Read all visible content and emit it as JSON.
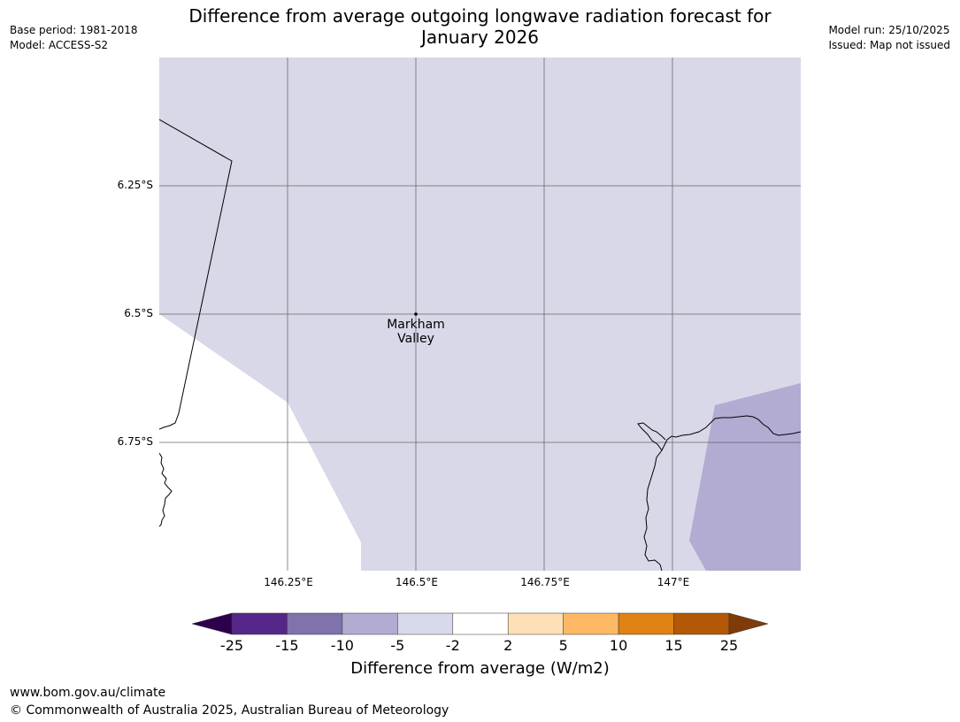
{
  "header": {
    "base_period": "Base period: 1981-2018",
    "model": "Model: ACCESS-S2",
    "model_run": "Model run: 25/10/2025",
    "issued": "Issued: Map not issued"
  },
  "title_line1": "Difference from average outgoing longwave radiation forecast for",
  "title_line2": "January 2026",
  "map": {
    "lat_labels": [
      "6.25°S",
      "6.5°S",
      "6.75°S"
    ],
    "lon_labels": [
      "146.25°E",
      "146.5°E",
      "146.75°E",
      "147°E"
    ],
    "places": [
      {
        "name_line1": "Markham",
        "name_line2": "Valley"
      }
    ],
    "colors": {
      "class_-5_-2": "#d8d8e8",
      "class_-10_-5": "#b2abd2",
      "gridline": "#555555",
      "coast": "#000000"
    }
  },
  "colorbar": {
    "ticks": [
      "-25",
      "-15",
      "-10",
      "-5",
      "-2",
      "2",
      "5",
      "10",
      "15",
      "25"
    ],
    "colors": [
      "#2d004b",
      "#542788",
      "#8073ac",
      "#b2abd2",
      "#d8daeb",
      "#ffffff",
      "#fee0b6",
      "#fdb863",
      "#e08214",
      "#b35806",
      "#7f3b08"
    ],
    "label": "Difference from average (W/m2)"
  },
  "footer": {
    "url": "www.bom.gov.au/climate",
    "copyright": "© Commonwealth of Australia 2025, Australian Bureau of Meteorology"
  }
}
